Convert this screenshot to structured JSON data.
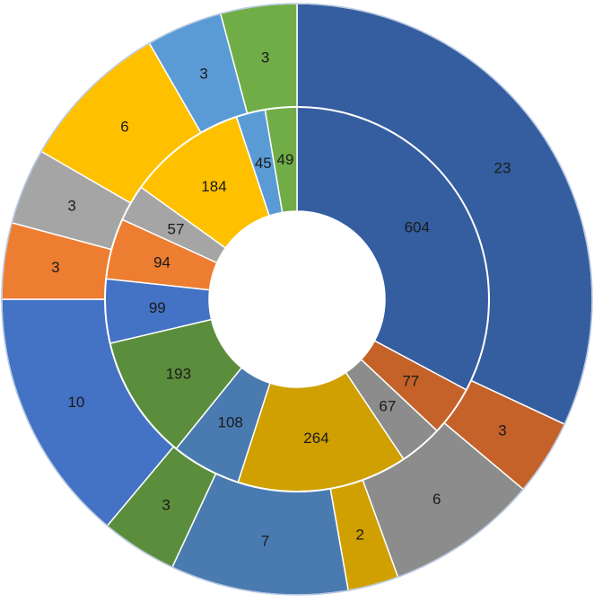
{
  "chart_data": {
    "type": "pie",
    "subtype": "nested-donut",
    "start_angle_deg": 0,
    "direction": "clockwise",
    "inner_ring": {
      "values": [
        604,
        77,
        67,
        264,
        108,
        193,
        99,
        94,
        57,
        184,
        45,
        49
      ],
      "colors": [
        "#355EA0",
        "#C4622A",
        "#8C8C8C",
        "#D0A000",
        "#4A7BB0",
        "#5B8E3C",
        "#4472C4",
        "#ED7D31",
        "#A5A5A5",
        "#FFC000",
        "#5B9BD5",
        "#70AD47"
      ]
    },
    "outer_ring": {
      "values": [
        23,
        3,
        6,
        2,
        7,
        3,
        10,
        3,
        3,
        6,
        3,
        3
      ],
      "colors": [
        "#355EA0",
        "#C4622A",
        "#8C8C8C",
        "#D0A000",
        "#4A7BB0",
        "#5B8E3C",
        "#4472C4",
        "#ED7D31",
        "#A5A5A5",
        "#FFC000",
        "#5B9BD5",
        "#70AD47"
      ]
    }
  }
}
